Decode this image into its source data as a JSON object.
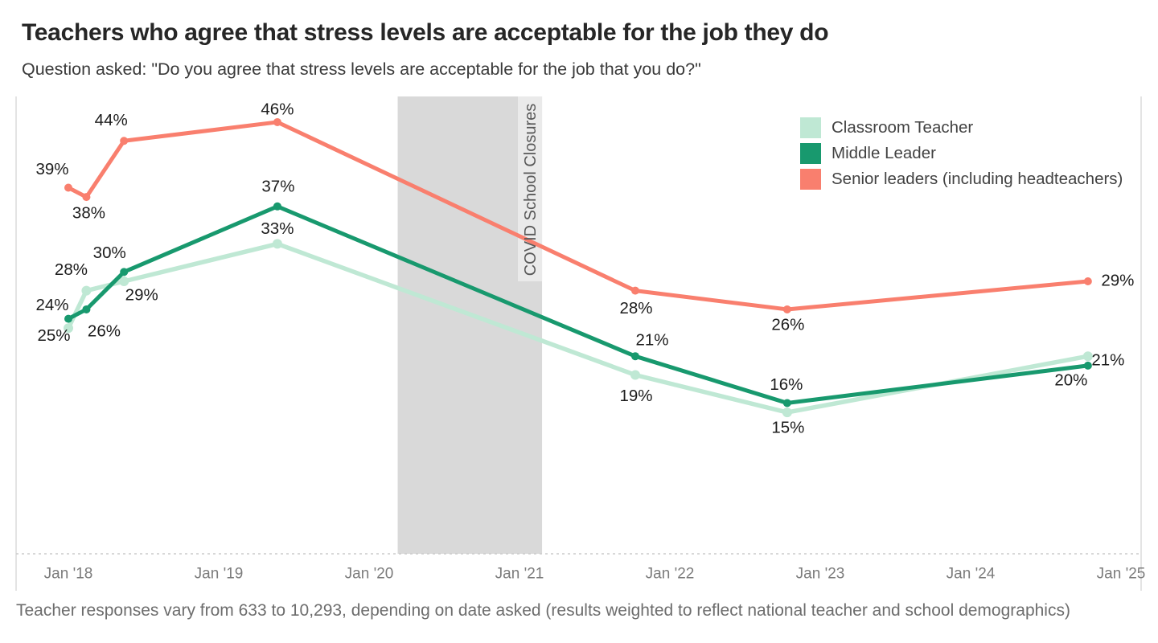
{
  "header": {
    "title": "Teachers who agree that stress levels are acceptable for the job they do",
    "subtitle": "Question asked: \"Do you agree that stress levels are acceptable for the job that you do?\""
  },
  "footer": {
    "caption": "Teacher responses vary from 633 to 10,293, depending on date asked (results weighted to reflect national teacher and school demographics)"
  },
  "chart_data": {
    "type": "line",
    "title": "Teachers who agree that stress levels are acceptable for the job they do",
    "subtitle": "Question asked: \"Do you agree that stress levels are acceptable for the job that you do?\"",
    "xlabel": "",
    "ylabel": "",
    "unit": "%",
    "grid": false,
    "legend_position": "top-right",
    "x_axis": {
      "tick_labels": [
        "Jan '18",
        "Jan '19",
        "Jan '20",
        "Jan '21",
        "Jan '22",
        "Jan '23",
        "Jan '24",
        "Jan '25"
      ],
      "tick_years": [
        2018,
        2019,
        2020,
        2021,
        2022,
        2023,
        2024,
        2025
      ],
      "range_years": [
        2017.65,
        2025.14
      ]
    },
    "ylim": [
      0,
      49
    ],
    "x_points_years": [
      2018.0,
      2018.12,
      2018.37,
      2019.39,
      2021.77,
      2022.78,
      2024.78
    ],
    "series": [
      {
        "id": "classroom-teacher",
        "name": "Classroom Teacher",
        "color": "#bfe8d4",
        "values": [
          24,
          28,
          29,
          33,
          19,
          15,
          21
        ],
        "labels": [
          "24%",
          "28%",
          "29%",
          "33%",
          "19%",
          "15%",
          "21%"
        ],
        "label_offsets": [
          [
            -20,
            -29
          ],
          [
            -19,
            -26
          ],
          [
            22,
            17
          ],
          [
            0,
            -19
          ],
          [
            1,
            26
          ],
          [
            1,
            19
          ],
          [
            25,
            5
          ]
        ]
      },
      {
        "id": "middle-leader",
        "name": "Middle Leader",
        "color": "#18996e",
        "values": [
          25,
          26,
          30,
          37,
          21,
          16,
          20
        ],
        "labels": [
          "25%",
          "26%",
          "30%",
          "37%",
          "21%",
          "16%",
          "20%"
        ],
        "label_offsets": [
          [
            -18,
            21
          ],
          [
            22,
            27
          ],
          [
            -18,
            -24
          ],
          [
            1,
            -25
          ],
          [
            21,
            -20
          ],
          [
            -1,
            -23
          ],
          [
            -21,
            18
          ]
        ]
      },
      {
        "id": "senior-leaders",
        "name": "Senior leaders (including headteachers)",
        "color": "#f97f6e",
        "values": [
          39,
          38,
          44,
          46,
          28,
          26,
          29
        ],
        "labels": [
          "39%",
          "38%",
          "44%",
          "46%",
          "28%",
          "26%",
          "29%"
        ],
        "label_offsets": [
          [
            -20,
            -23
          ],
          [
            3,
            20
          ],
          [
            -16,
            -26
          ],
          [
            0,
            -16
          ],
          [
            1,
            22
          ],
          [
            1,
            19
          ],
          [
            37,
            -1
          ]
        ]
      }
    ],
    "annotations": {
      "covid_band": {
        "label": "COVID School Closures",
        "start_year": 2020.19,
        "end_year": 2021.15,
        "band_color": "#d9d9d9",
        "label_strip_color": "#eaeaea"
      }
    }
  }
}
